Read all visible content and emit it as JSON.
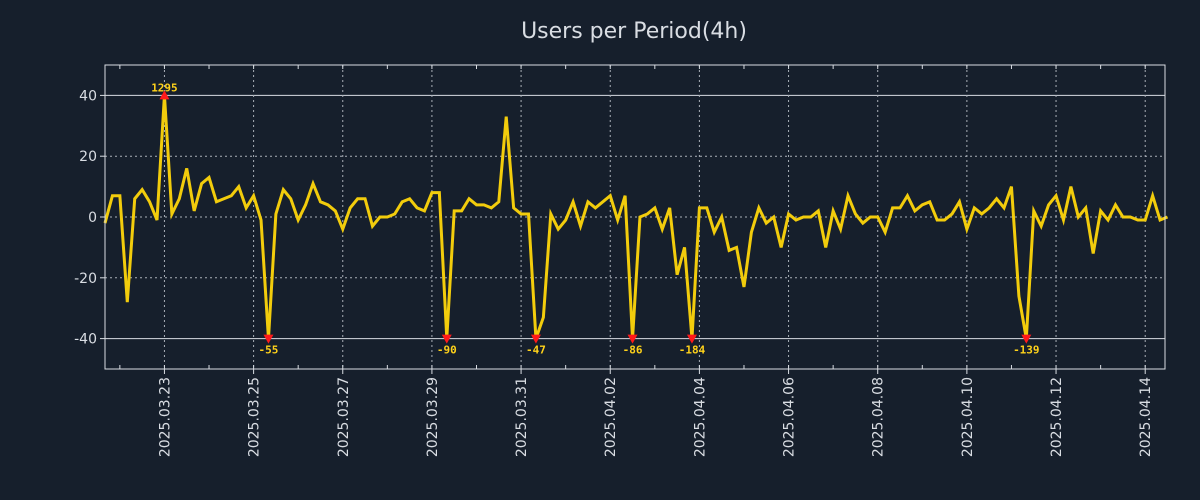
{
  "chart_data": {
    "type": "line",
    "title": "Users per Period(4h)",
    "xlabel": "",
    "ylabel": "",
    "period_hours": 4,
    "start": "2025-03-21T16:00",
    "ylim": [
      -50,
      50
    ],
    "yticks": [
      -40,
      -20,
      0,
      20,
      40
    ],
    "ytick_labels": [
      "-40",
      "-20",
      "0",
      "20",
      "40"
    ],
    "xtick_labels": [
      "2025.03.23",
      "2025.03.25",
      "2025.03.27",
      "2025.03.29",
      "2025.03.31",
      "2025.04.02",
      "2025.04.04",
      "2025.04.06",
      "2025.04.08",
      "2025.04.10",
      "2025.04.12",
      "2025.04.14"
    ],
    "grid": true,
    "clip_range": [
      -40,
      40
    ],
    "series": [
      {
        "name": "Users",
        "color": "#f2cc0c",
        "values": [
          -2,
          7,
          7,
          -28,
          6,
          9,
          5,
          -1,
          40,
          1,
          6,
          16,
          2,
          11,
          13,
          5,
          6,
          7,
          10,
          3,
          7,
          -1,
          -40,
          1,
          9,
          6,
          -1,
          4,
          11,
          5,
          4,
          2,
          -4,
          3,
          6,
          6,
          -3,
          0,
          0,
          1,
          5,
          6,
          3,
          2,
          8,
          8,
          -40,
          2,
          2,
          6,
          4,
          4,
          3,
          5,
          33,
          3,
          1,
          1,
          -40,
          -33,
          1,
          -4,
          -1,
          5,
          -3,
          5,
          3,
          5,
          7,
          -1,
          7,
          -40,
          0,
          1,
          3,
          -4,
          3,
          -19,
          -10,
          -40,
          3,
          3,
          -5,
          0,
          -11,
          -10,
          -23,
          -5,
          3,
          -2,
          0,
          -10,
          1,
          -1,
          0,
          0,
          2,
          -10,
          2,
          -4,
          7,
          1,
          -2,
          0,
          0,
          -5,
          3,
          3,
          7,
          2,
          4,
          5,
          -1,
          -1,
          1,
          5,
          -4,
          3,
          1,
          3,
          6,
          3,
          10,
          -26,
          -40,
          2,
          -3,
          4,
          7,
          -1,
          10,
          0,
          3,
          -12,
          2,
          -1,
          4,
          0,
          0,
          -1,
          -1,
          7,
          -1,
          0
        ]
      }
    ],
    "annotations": [
      {
        "index": 8,
        "label": "1295",
        "direction": "up"
      },
      {
        "index": 22,
        "label": "-55",
        "direction": "down"
      },
      {
        "index": 46,
        "label": "-90",
        "direction": "down"
      },
      {
        "index": 58,
        "label": "-47",
        "direction": "down"
      },
      {
        "index": 71,
        "label": "-86",
        "direction": "down"
      },
      {
        "index": 79,
        "label": "-184",
        "direction": "down"
      },
      {
        "index": 124,
        "label": "-139",
        "direction": "down"
      }
    ],
    "marker_color": "#ff1a1a"
  }
}
